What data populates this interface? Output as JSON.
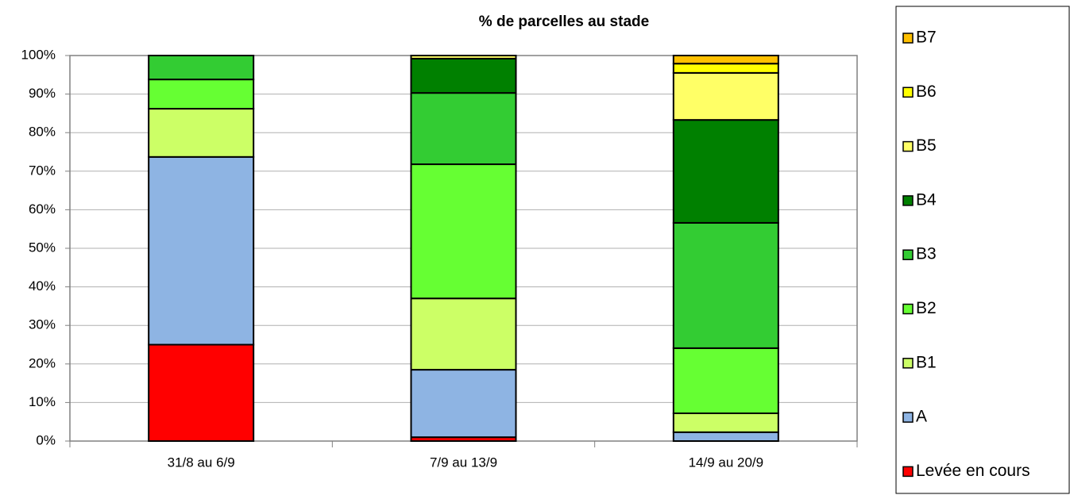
{
  "chart_data": {
    "type": "stacked_bar",
    "title": "% de parcelles au stade",
    "categories": [
      "31/8 au 6/9",
      "7/9 au 13/9",
      "14/9 au 20/9"
    ],
    "series": [
      {
        "name": "Levée en cours",
        "color": "#ff0000",
        "values": [
          25,
          1.0,
          0
        ]
      },
      {
        "name": "A",
        "color": "#8eb4e3",
        "values": [
          48.7,
          17.5,
          2.3
        ]
      },
      {
        "name": "B1",
        "color": "#ccff66",
        "values": [
          12.5,
          18.5,
          4.9
        ]
      },
      {
        "name": "B2",
        "color": "#66ff33",
        "values": [
          7.6,
          34.8,
          16.9
        ]
      },
      {
        "name": "B3",
        "color": "#33cc33",
        "values": [
          6.2,
          18.5,
          32.5
        ]
      },
      {
        "name": "B4",
        "color": "#008000",
        "values": [
          0,
          8.9,
          26.7
        ]
      },
      {
        "name": "B5",
        "color": "#ffff66",
        "values": [
          0,
          0.8,
          12.2
        ]
      },
      {
        "name": "B6",
        "color": "#ffff00",
        "values": [
          0,
          0,
          2.4
        ]
      },
      {
        "name": "B7",
        "color": "#ffc000",
        "values": [
          0,
          0,
          2.1
        ]
      }
    ],
    "ylim": [
      0,
      100
    ],
    "yticks": [
      {
        "value": 0,
        "label": "0%"
      },
      {
        "value": 10,
        "label": "10%"
      },
      {
        "value": 20,
        "label": "20%"
      },
      {
        "value": 30,
        "label": "30%"
      },
      {
        "value": 40,
        "label": "40%"
      },
      {
        "value": 50,
        "label": "50%"
      },
      {
        "value": 60,
        "label": "60%"
      },
      {
        "value": 70,
        "label": "70%"
      },
      {
        "value": 80,
        "label": "80%"
      },
      {
        "value": 90,
        "label": "90%"
      },
      {
        "value": 100,
        "label": "100%"
      }
    ],
    "grid": true,
    "legend": "right"
  }
}
